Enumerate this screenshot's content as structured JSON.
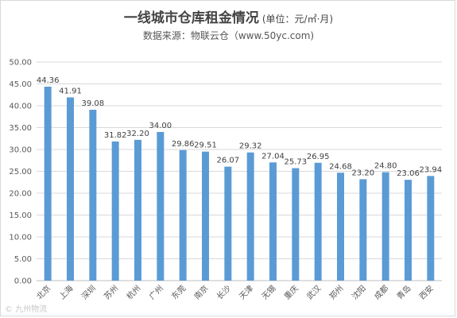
{
  "chart_data": {
    "type": "bar",
    "title": "一线城市仓库租金情况",
    "unit_note": "(单位：元/㎡·月)",
    "subtitle": "数据来源：物联云仓（www.50yc.com)",
    "categories": [
      "北京",
      "上海",
      "深圳",
      "苏州",
      "杭州",
      "广州",
      "东莞",
      "南京",
      "长沙",
      "天津",
      "无锡",
      "重庆",
      "武汉",
      "郑州",
      "沈阳",
      "成都",
      "青岛",
      "西安"
    ],
    "values": [
      44.36,
      41.91,
      39.08,
      31.82,
      32.2,
      34.0,
      29.86,
      29.51,
      26.07,
      29.32,
      27.04,
      25.73,
      26.95,
      24.68,
      23.2,
      24.8,
      23.06,
      23.94
    ],
    "value_labels": [
      "44.36",
      "41.91",
      "39.08",
      "31.82",
      "32.20",
      "34.00",
      "29.86",
      "29.51",
      "26.07",
      "29.32",
      "27.04",
      "25.73",
      "26.95",
      "24.68",
      "23.20",
      "24.80",
      "23.06",
      "23.94"
    ],
    "y_ticks": [
      "0.00",
      "5.00",
      "10.00",
      "15.00",
      "20.00",
      "25.00",
      "30.00",
      "35.00",
      "40.00",
      "45.00",
      "50.00"
    ],
    "ylim": [
      0,
      50
    ],
    "grid": true,
    "legend": "none",
    "bar_color": "#5b9bd5"
  },
  "watermark": "© 九州物流"
}
